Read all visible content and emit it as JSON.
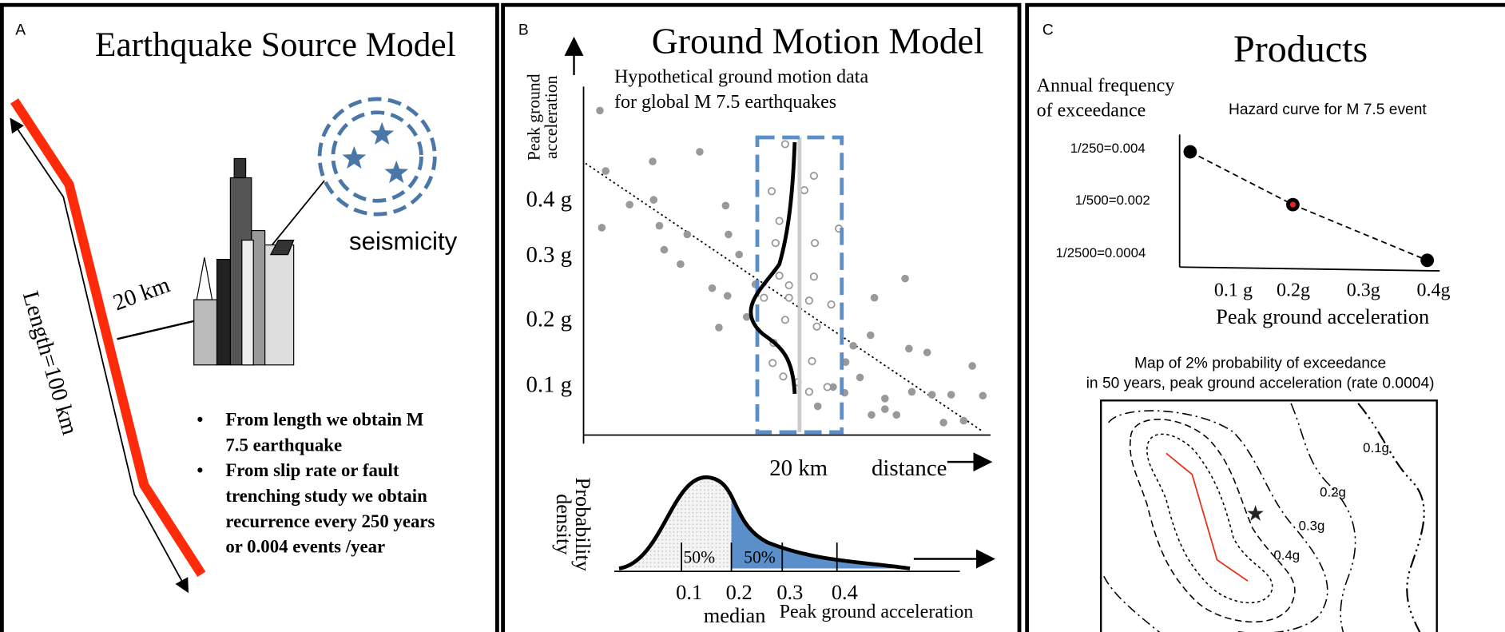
{
  "panel_a": {
    "letter": "A",
    "title": "Earthquake Source Model",
    "length_label": "Length=100 km",
    "distance_label": "20 km",
    "seismicity_label": "seismicity",
    "bullets": [
      [
        "From length we obtain M",
        "7.5 earthquake"
      ],
      [
        "From slip rate or fault",
        "trenching study we obtain",
        "recurrence every 250 years",
        "or 0.004 events /year"
      ]
    ]
  },
  "panel_b": {
    "letter": "B",
    "title": "Ground Motion Model",
    "y_axis_label": [
      "Peak ground",
      "acceleration"
    ],
    "data_note": [
      "Hypothetical ground motion data",
      "for global M 7.5 earthquakes"
    ],
    "y_ticks": [
      "0.4 g",
      "0.3 g",
      "0.2 g",
      "0.1 g"
    ],
    "distance_marker": "20 km",
    "x_axis_label": "distance",
    "density_label": [
      "Probability",
      "density"
    ],
    "percent_labels": [
      "50%",
      "50%"
    ],
    "density_ticks": [
      "0.1",
      "0.2",
      "0.3",
      "0.4"
    ],
    "median_label": "median",
    "density_x_label": "Peak ground acceleration"
  },
  "panel_c": {
    "letter": "C",
    "title": "Products",
    "y_axis_label": [
      "Annual frequency",
      "of exceedance"
    ],
    "curve_title": "Hazard curve for M 7.5 event",
    "y_ticks": [
      "1/250=0.004",
      "1/500=0.002",
      "1/2500=0.0004"
    ],
    "x_ticks": [
      "0.1 g",
      "0.2g",
      "0.3g",
      "0.4g"
    ],
    "x_axis_label": "Peak ground acceleration",
    "map_title": [
      "Map of 2% probability of exceedance",
      "in 50 years, peak ground acceleration (rate 0.0004)"
    ],
    "contour_labels": [
      "0.1g",
      "0.2g",
      "0.3g",
      "0.4g"
    ]
  }
}
